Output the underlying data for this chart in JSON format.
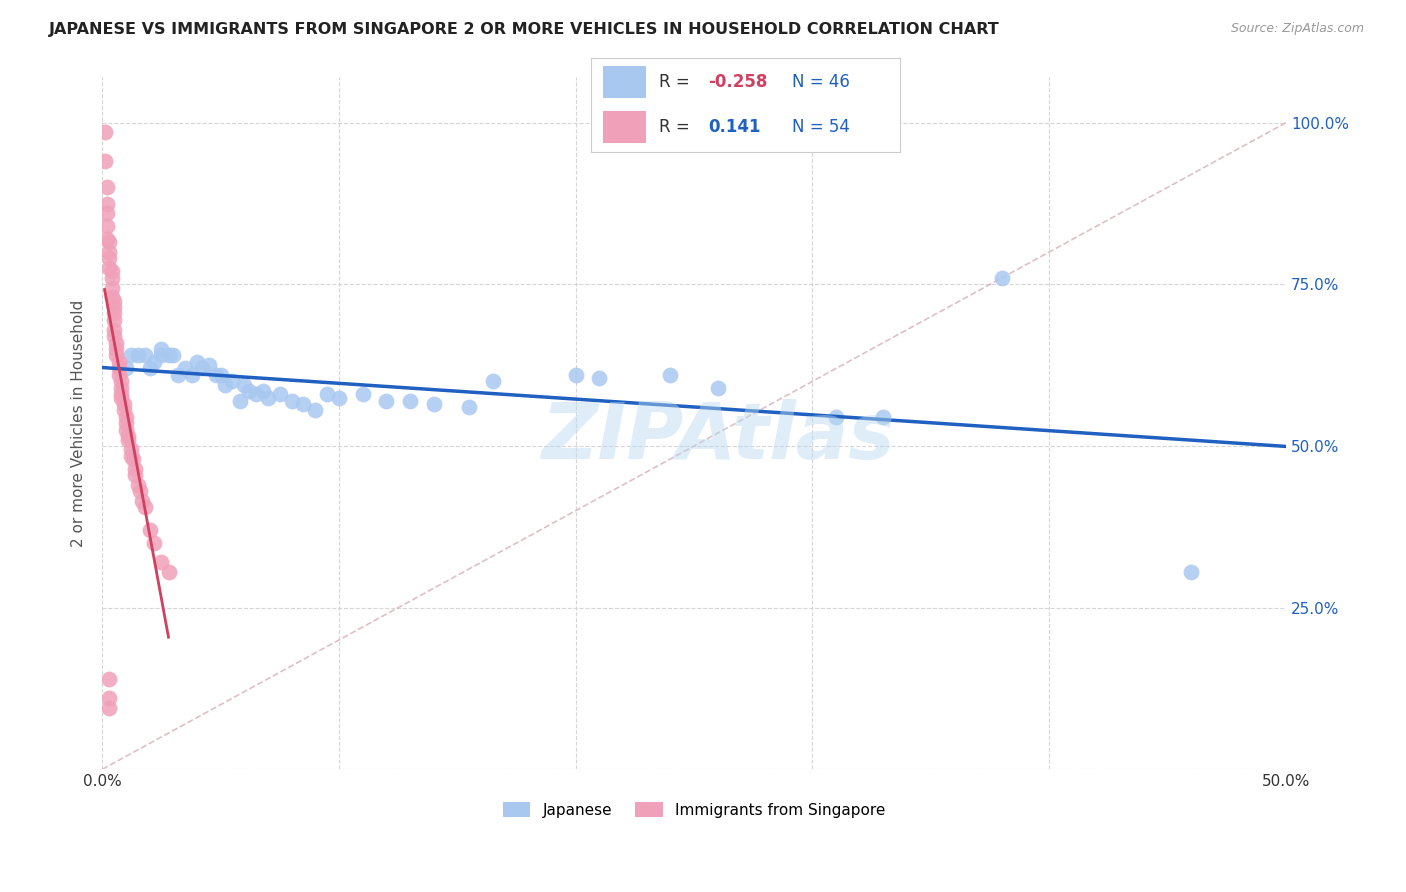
{
  "title": "JAPANESE VS IMMIGRANTS FROM SINGAPORE 2 OR MORE VEHICLES IN HOUSEHOLD CORRELATION CHART",
  "source": "Source: ZipAtlas.com",
  "ylabel": "2 or more Vehicles in Household",
  "xlim": [
    0.0,
    0.5
  ],
  "ylim": [
    0.0,
    1.05
  ],
  "legend_blue_R": "-0.258",
  "legend_blue_N": "46",
  "legend_pink_R": "0.141",
  "legend_pink_N": "54",
  "blue_color": "#a8c8f0",
  "pink_color": "#f0a0b8",
  "trendline_blue_color": "#2060c0",
  "trendline_pink_color": "#d04060",
  "diagonal_color": "#d8b0b8",
  "watermark": "ZIPAtlas",
  "blue_x": [
    0.01,
    0.012,
    0.015,
    0.018,
    0.02,
    0.022,
    0.025,
    0.025,
    0.028,
    0.03,
    0.032,
    0.035,
    0.038,
    0.04,
    0.042,
    0.045,
    0.048,
    0.05,
    0.052,
    0.055,
    0.058,
    0.06,
    0.062,
    0.065,
    0.068,
    0.07,
    0.075,
    0.08,
    0.085,
    0.09,
    0.095,
    0.1,
    0.11,
    0.12,
    0.13,
    0.14,
    0.155,
    0.165,
    0.2,
    0.21,
    0.24,
    0.26,
    0.31,
    0.33,
    0.38,
    0.46
  ],
  "blue_y": [
    0.62,
    0.64,
    0.64,
    0.64,
    0.62,
    0.63,
    0.65,
    0.64,
    0.64,
    0.64,
    0.61,
    0.62,
    0.61,
    0.63,
    0.62,
    0.625,
    0.61,
    0.61,
    0.595,
    0.6,
    0.57,
    0.595,
    0.585,
    0.58,
    0.585,
    0.575,
    0.58,
    0.57,
    0.565,
    0.555,
    0.58,
    0.575,
    0.58,
    0.57,
    0.57,
    0.565,
    0.56,
    0.6,
    0.61,
    0.605,
    0.61,
    0.59,
    0.545,
    0.545,
    0.76,
    0.305
  ],
  "pink_x": [
    0.001,
    0.001,
    0.002,
    0.002,
    0.002,
    0.002,
    0.002,
    0.003,
    0.003,
    0.003,
    0.003,
    0.004,
    0.004,
    0.004,
    0.004,
    0.005,
    0.005,
    0.005,
    0.005,
    0.005,
    0.005,
    0.006,
    0.006,
    0.006,
    0.007,
    0.007,
    0.007,
    0.008,
    0.008,
    0.008,
    0.008,
    0.009,
    0.009,
    0.01,
    0.01,
    0.01,
    0.011,
    0.011,
    0.012,
    0.012,
    0.013,
    0.014,
    0.014,
    0.015,
    0.016,
    0.017,
    0.018,
    0.02,
    0.022,
    0.025,
    0.028,
    0.003,
    0.003,
    0.003
  ],
  "pink_y": [
    0.985,
    0.94,
    0.9,
    0.875,
    0.86,
    0.84,
    0.82,
    0.815,
    0.8,
    0.79,
    0.775,
    0.77,
    0.76,
    0.745,
    0.73,
    0.725,
    0.715,
    0.705,
    0.695,
    0.68,
    0.67,
    0.66,
    0.65,
    0.64,
    0.63,
    0.62,
    0.61,
    0.6,
    0.59,
    0.58,
    0.575,
    0.565,
    0.555,
    0.545,
    0.535,
    0.525,
    0.515,
    0.51,
    0.495,
    0.485,
    0.48,
    0.465,
    0.455,
    0.44,
    0.43,
    0.415,
    0.405,
    0.37,
    0.35,
    0.32,
    0.305,
    0.14,
    0.11,
    0.095
  ]
}
